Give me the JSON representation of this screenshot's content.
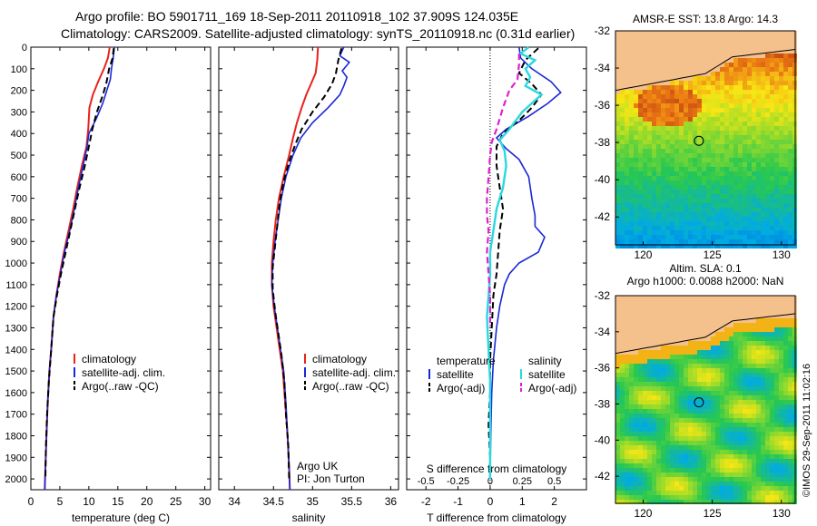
{
  "header": {
    "line1": "Argo profile: BO 5901711_169 18-Sep-2011 20110918_102 37.909S 124.035E",
    "line2": "Climatology: CARS2009. Satellite-adjusted climatology: synTS_20110918.nc (0.31d earlier)"
  },
  "side_label": "©IMOS 29-Sep-2011 11:02:16",
  "colors": {
    "climatology": "#e8231c",
    "satellite": "#1a28d6",
    "argo": "#000000",
    "sal_satellite": "#2ad8e0",
    "sal_argo": "#e020d0",
    "land": "#f4c08c"
  },
  "chart_data": [
    {
      "id": "temperature",
      "type": "line",
      "xlabel": "temperature (deg C)",
      "ylim": [
        2050,
        0
      ],
      "xlim": [
        0,
        31
      ],
      "xticks": [
        0,
        5,
        10,
        15,
        20,
        25,
        30
      ],
      "yticks": [
        0,
        100,
        200,
        300,
        400,
        500,
        600,
        700,
        800,
        900,
        1000,
        1100,
        1200,
        1300,
        1400,
        1500,
        1600,
        1700,
        1800,
        1900,
        2000
      ],
      "legend": [
        "climatology",
        "satellite-adj. clim.",
        "Argo(..raw -QC)"
      ],
      "series": [
        {
          "name": "climatology",
          "style": "climatology",
          "points": [
            [
              13.6,
              0
            ],
            [
              13.3,
              50
            ],
            [
              12.6,
              100
            ],
            [
              11.6,
              160
            ],
            [
              10.7,
              220
            ],
            [
              10.1,
              280
            ],
            [
              9.9,
              380
            ],
            [
              9.6,
              460
            ],
            [
              8.8,
              550
            ],
            [
              8.0,
              650
            ],
            [
              7.3,
              750
            ],
            [
              6.5,
              850
            ],
            [
              5.7,
              950
            ],
            [
              5.0,
              1050
            ],
            [
              4.4,
              1150
            ],
            [
              3.9,
              1250
            ],
            [
              3.5,
              1400
            ],
            [
              3.2,
              1500
            ],
            [
              2.9,
              1650
            ],
            [
              2.7,
              1800
            ],
            [
              2.5,
              1950
            ],
            [
              2.4,
              2050
            ]
          ]
        },
        {
          "name": "satellite-adj. clim.",
          "style": "satellite",
          "points": [
            [
              14.4,
              0
            ],
            [
              14.2,
              50
            ],
            [
              13.9,
              100
            ],
            [
              13.7,
              150
            ],
            [
              13.1,
              200
            ],
            [
              12.4,
              260
            ],
            [
              11.3,
              330
            ],
            [
              10.0,
              400
            ],
            [
              9.7,
              460
            ],
            [
              9.0,
              550
            ],
            [
              8.2,
              650
            ],
            [
              7.5,
              750
            ],
            [
              6.7,
              850
            ],
            [
              5.8,
              950
            ],
            [
              5.1,
              1050
            ],
            [
              4.4,
              1150
            ],
            [
              3.9,
              1250
            ],
            [
              3.5,
              1400
            ],
            [
              3.2,
              1500
            ],
            [
              2.9,
              1650
            ],
            [
              2.7,
              1800
            ],
            [
              2.5,
              1950
            ],
            [
              2.4,
              2050
            ]
          ]
        },
        {
          "name": "Argo(..raw -QC)",
          "style": "argo",
          "points": [
            [
              14.3,
              5
            ],
            [
              14.1,
              50
            ],
            [
              13.5,
              100
            ],
            [
              13.0,
              170
            ],
            [
              12.3,
              230
            ],
            [
              11.4,
              300
            ],
            [
              10.6,
              380
            ],
            [
              10.0,
              460
            ],
            [
              9.3,
              550
            ],
            [
              8.4,
              650
            ],
            [
              7.6,
              750
            ],
            [
              6.8,
              850
            ],
            [
              6.0,
              950
            ],
            [
              5.2,
              1050
            ],
            [
              4.5,
              1150
            ],
            [
              3.9,
              1250
            ],
            [
              3.5,
              1400
            ],
            [
              3.1,
              1550
            ],
            [
              2.8,
              1700
            ],
            [
              2.6,
              1850
            ],
            [
              2.5,
              2000
            ]
          ]
        }
      ]
    },
    {
      "id": "salinity",
      "type": "line",
      "xlabel": "salinity",
      "xlim": [
        33.8,
        36.1
      ],
      "xticks": [
        34,
        34.5,
        35,
        35.5,
        36
      ],
      "legend": [
        "climatology",
        "satellite-adj. clim.",
        "Argo(..raw -QC)"
      ],
      "annotation": [
        "Argo UK",
        "PI: Jon Turton"
      ],
      "series": [
        {
          "name": "climatology",
          "style": "climatology",
          "points": [
            [
              35.07,
              0
            ],
            [
              35.06,
              60
            ],
            [
              35.04,
              120
            ],
            [
              34.98,
              170
            ],
            [
              34.92,
              220
            ],
            [
              34.86,
              280
            ],
            [
              34.8,
              350
            ],
            [
              34.75,
              420
            ],
            [
              34.7,
              500
            ],
            [
              34.63,
              600
            ],
            [
              34.57,
              700
            ],
            [
              34.53,
              800
            ],
            [
              34.5,
              900
            ],
            [
              34.48,
              1000
            ],
            [
              34.48,
              1100
            ],
            [
              34.5,
              1200
            ],
            [
              34.54,
              1300
            ],
            [
              34.58,
              1400
            ],
            [
              34.62,
              1500
            ],
            [
              34.65,
              1650
            ],
            [
              34.68,
              1800
            ],
            [
              34.7,
              1950
            ],
            [
              34.71,
              2050
            ]
          ]
        },
        {
          "name": "satellite-adj. clim.",
          "style": "satellite",
          "points": [
            [
              35.4,
              0
            ],
            [
              35.35,
              40
            ],
            [
              35.47,
              70
            ],
            [
              35.38,
              110
            ],
            [
              35.44,
              140
            ],
            [
              35.4,
              180
            ],
            [
              35.35,
              220
            ],
            [
              35.2,
              280
            ],
            [
              35.0,
              350
            ],
            [
              34.85,
              420
            ],
            [
              34.75,
              500
            ],
            [
              34.66,
              600
            ],
            [
              34.6,
              700
            ],
            [
              34.56,
              800
            ],
            [
              34.52,
              900
            ],
            [
              34.49,
              1000
            ],
            [
              34.48,
              1100
            ],
            [
              34.51,
              1200
            ],
            [
              34.55,
              1300
            ],
            [
              34.59,
              1400
            ],
            [
              34.63,
              1500
            ],
            [
              34.66,
              1650
            ],
            [
              34.68,
              1800
            ],
            [
              34.7,
              1950
            ],
            [
              34.71,
              2050
            ]
          ]
        },
        {
          "name": "Argo(..raw -QC)",
          "style": "argo",
          "points": [
            [
              35.37,
              5
            ],
            [
              35.33,
              60
            ],
            [
              35.3,
              120
            ],
            [
              35.25,
              170
            ],
            [
              35.15,
              230
            ],
            [
              35.0,
              300
            ],
            [
              34.86,
              380
            ],
            [
              34.78,
              450
            ],
            [
              34.71,
              520
            ],
            [
              34.63,
              620
            ],
            [
              34.58,
              720
            ],
            [
              34.55,
              820
            ],
            [
              34.52,
              920
            ],
            [
              34.49,
              1020
            ],
            [
              34.49,
              1120
            ],
            [
              34.52,
              1220
            ],
            [
              34.56,
              1320
            ],
            [
              34.6,
              1420
            ],
            [
              34.64,
              1550
            ],
            [
              34.66,
              1700
            ],
            [
              34.69,
              1850
            ],
            [
              34.7,
              2000
            ]
          ]
        }
      ]
    },
    {
      "id": "difference",
      "type": "line",
      "xlabel": "T difference from climatology",
      "xlabel2": "S difference from climatology",
      "xlim": [
        -2.6,
        3.0
      ],
      "xticks": [
        -2,
        -1,
        0,
        1,
        2
      ],
      "xticks2": [
        -0.5,
        -0.25,
        0,
        0.25,
        0.5
      ],
      "legend_headers": [
        "temperature",
        "salinity"
      ],
      "legend": [
        "satellite",
        "Argo(-adj)",
        "satellite",
        "Argo(-adj)"
      ],
      "series": [
        {
          "name": "temperature satellite",
          "style": "satellite",
          "points": [
            [
              0.9,
              0
            ],
            [
              0.95,
              50
            ],
            [
              1.3,
              100
            ],
            [
              1.9,
              160
            ],
            [
              2.2,
              210
            ],
            [
              1.8,
              260
            ],
            [
              1.2,
              320
            ],
            [
              0.5,
              380
            ],
            [
              0.2,
              420
            ],
            [
              0.5,
              470
            ],
            [
              0.9,
              520
            ],
            [
              1.2,
              600
            ],
            [
              1.3,
              700
            ],
            [
              1.4,
              780
            ],
            [
              1.4,
              830
            ],
            [
              1.7,
              880
            ],
            [
              1.5,
              950
            ],
            [
              0.9,
              1000
            ],
            [
              0.6,
              1050
            ],
            [
              0.45,
              1100
            ],
            [
              0.3,
              1200
            ],
            [
              0.2,
              1300
            ],
            [
              0.1,
              1450
            ],
            [
              0.05,
              1600
            ],
            [
              0.02,
              1800
            ],
            [
              0.0,
              2000
            ]
          ]
        },
        {
          "name": "temperature Argo(-adj)",
          "style": "argo",
          "points": [
            [
              1.5,
              5
            ],
            [
              1.1,
              60
            ],
            [
              0.9,
              120
            ],
            [
              1.3,
              170
            ],
            [
              1.6,
              220
            ],
            [
              1.3,
              280
            ],
            [
              0.9,
              340
            ],
            [
              0.4,
              400
            ],
            [
              0.2,
              460
            ],
            [
              0.2,
              550
            ],
            [
              0.3,
              650
            ],
            [
              0.4,
              750
            ],
            [
              0.3,
              850
            ],
            [
              0.25,
              950
            ],
            [
              0.2,
              1050
            ],
            [
              0.1,
              1150
            ],
            [
              0.05,
              1300
            ],
            [
              0.0,
              1450
            ],
            [
              0.0,
              1600
            ],
            [
              -0.05,
              1750
            ],
            [
              0.0,
              1900
            ],
            [
              0.0,
              2000
            ]
          ]
        },
        {
          "name": "salinity satellite",
          "style": "sal_satellite",
          "points": [
            [
              1.2,
              0
            ],
            [
              0.95,
              30
            ],
            [
              1.4,
              60
            ],
            [
              1.1,
              100
            ],
            [
              1.25,
              140
            ],
            [
              1.1,
              180
            ],
            [
              1.6,
              220
            ],
            [
              1.3,
              260
            ],
            [
              1.0,
              300
            ],
            [
              0.6,
              380
            ],
            [
              0.3,
              430
            ],
            [
              0.45,
              480
            ],
            [
              0.5,
              550
            ],
            [
              0.4,
              650
            ],
            [
              0.2,
              750
            ],
            [
              0.1,
              850
            ],
            [
              0.0,
              950
            ],
            [
              0.0,
              1050
            ],
            [
              -0.05,
              1150
            ],
            [
              -0.1,
              1250
            ],
            [
              -0.05,
              1400
            ],
            [
              0.0,
              1550
            ],
            [
              0.0,
              1700
            ],
            [
              0.0,
              1850
            ],
            [
              0.0,
              2000
            ]
          ]
        },
        {
          "name": "salinity Argo(-adj)",
          "style": "sal_argo",
          "points": [
            [
              0.9,
              30
            ],
            [
              0.9,
              80
            ],
            [
              0.85,
              150
            ],
            [
              0.6,
              200
            ],
            [
              0.4,
              280
            ],
            [
              0.2,
              380
            ],
            [
              0.05,
              440
            ],
            [
              0.0,
              500
            ],
            [
              -0.05,
              600
            ],
            [
              -0.1,
              700
            ],
            [
              -0.1,
              780
            ],
            [
              -0.05,
              850
            ],
            [
              -0.1,
              950
            ],
            [
              -0.05,
              1050
            ],
            [
              0.0,
              1150
            ],
            [
              0.0,
              1300
            ]
          ]
        }
      ]
    },
    {
      "id": "sst_map",
      "type": "heatmap",
      "title": "AMSR-E SST: 13.8  Argo: 14.3",
      "xlim": [
        118,
        131
      ],
      "ylim": [
        -43.5,
        -32
      ],
      "xticks": [
        120,
        125,
        130
      ],
      "yticks": [
        -32,
        -34,
        -36,
        -38,
        -40,
        -42
      ],
      "marker": [
        124.035,
        -37.909
      ]
    },
    {
      "id": "sla_map",
      "type": "heatmap",
      "title": "Altim. SLA: 0.1",
      "subtitle": "Argo h1000: 0.0088 h2000: NaN",
      "xlim": [
        118,
        131
      ],
      "ylim": [
        -43.5,
        -32
      ],
      "xticks": [
        120,
        125,
        130
      ],
      "yticks": [
        -32,
        -34,
        -36,
        -38,
        -40,
        -42
      ],
      "marker": [
        124.035,
        -37.909
      ]
    }
  ]
}
